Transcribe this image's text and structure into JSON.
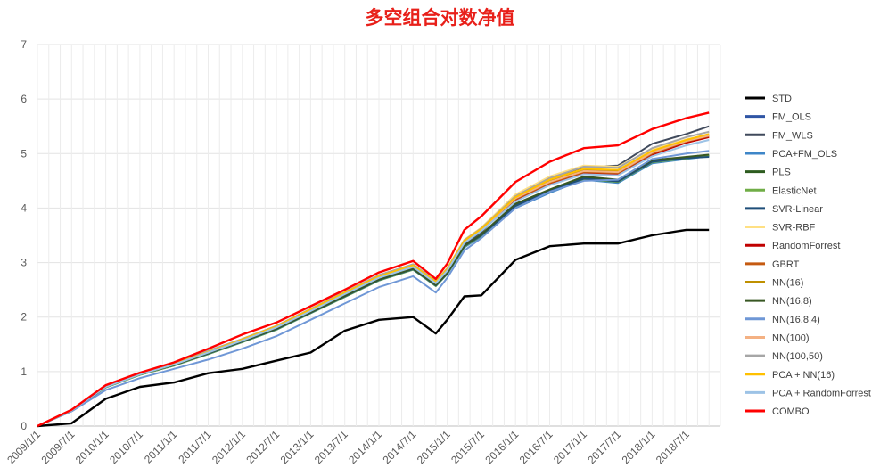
{
  "chart_data": {
    "type": "line",
    "title": "多空组合对数净值",
    "xlabel": "",
    "ylabel": "",
    "ylim": [
      0,
      7
    ],
    "yticks": [
      0,
      1,
      2,
      3,
      4,
      5,
      6,
      7
    ],
    "xtick_labels": [
      "2009/1/1",
      "2009/7/1",
      "2010/1/1",
      "2010/7/1",
      "2011/1/1",
      "2011/7/1",
      "2012/1/1",
      "2012/7/1",
      "2013/1/1",
      "2013/7/1",
      "2014/1/1",
      "2014/7/1",
      "2015/1/1",
      "2015/7/1",
      "2016/1/1",
      "2016/7/1",
      "2017/1/1",
      "2017/7/1",
      "2018/1/1",
      "2018/7/1"
    ],
    "x": [
      0,
      6,
      12,
      18,
      24,
      30,
      36,
      42,
      48,
      54,
      60,
      66,
      70,
      72,
      75,
      78,
      84,
      90,
      96,
      102,
      108,
      114,
      118
    ],
    "grid": true,
    "legend_position": "right",
    "series": [
      {
        "name": "STD",
        "color": "#000000",
        "values": [
          0,
          0.05,
          0.5,
          0.72,
          0.8,
          0.97,
          1.05,
          1.2,
          1.35,
          1.75,
          1.95,
          2.0,
          1.7,
          1.95,
          2.38,
          2.4,
          3.05,
          3.3,
          3.35,
          3.35,
          3.5,
          3.6,
          3.6
        ]
      },
      {
        "name": "FM_OLS",
        "color": "#2f55a4",
        "values": [
          0,
          0.28,
          0.72,
          0.95,
          1.12,
          1.33,
          1.55,
          1.78,
          2.08,
          2.38,
          2.68,
          2.88,
          2.58,
          2.8,
          3.3,
          3.5,
          4.05,
          4.32,
          4.55,
          4.5,
          4.85,
          4.92,
          4.95
        ]
      },
      {
        "name": "FM_WLS",
        "color": "#404a5c",
        "values": [
          0,
          0.28,
          0.72,
          0.95,
          1.12,
          1.34,
          1.56,
          1.79,
          2.1,
          2.4,
          2.7,
          2.9,
          2.6,
          2.82,
          3.34,
          3.56,
          4.2,
          4.55,
          4.75,
          4.78,
          5.18,
          5.36,
          5.5
        ]
      },
      {
        "name": "PCA+FM_OLS",
        "color": "#3e86c8",
        "values": [
          0,
          0.28,
          0.71,
          0.94,
          1.11,
          1.32,
          1.54,
          1.77,
          2.07,
          2.37,
          2.67,
          2.87,
          2.57,
          2.79,
          3.28,
          3.48,
          4.0,
          4.28,
          4.52,
          4.46,
          4.82,
          4.9,
          4.95
        ]
      },
      {
        "name": "PLS",
        "color": "#2d5c1f",
        "values": [
          0,
          0.28,
          0.72,
          0.95,
          1.12,
          1.33,
          1.55,
          1.78,
          2.08,
          2.38,
          2.68,
          2.88,
          2.58,
          2.8,
          3.3,
          3.5,
          4.05,
          4.32,
          4.55,
          4.5,
          4.86,
          4.93,
          4.97
        ]
      },
      {
        "name": "ElasticNet",
        "color": "#70ad47",
        "values": [
          0,
          0.28,
          0.71,
          0.94,
          1.11,
          1.32,
          1.54,
          1.77,
          2.07,
          2.37,
          2.67,
          2.87,
          2.57,
          2.79,
          3.29,
          3.49,
          4.03,
          4.3,
          4.53,
          4.48,
          4.84,
          4.91,
          4.96
        ]
      },
      {
        "name": "SVR-Linear",
        "color": "#1f4e79",
        "values": [
          0,
          0.28,
          0.72,
          0.95,
          1.12,
          1.33,
          1.55,
          1.78,
          2.08,
          2.38,
          2.68,
          2.88,
          2.58,
          2.8,
          3.3,
          3.5,
          4.04,
          4.31,
          4.54,
          4.49,
          4.85,
          4.92,
          4.94
        ]
      },
      {
        "name": "SVR-RBF",
        "color": "#ffe083",
        "values": [
          0,
          0.29,
          0.73,
          0.96,
          1.14,
          1.36,
          1.6,
          1.84,
          2.15,
          2.46,
          2.77,
          2.97,
          2.66,
          2.9,
          3.42,
          3.64,
          4.25,
          4.58,
          4.78,
          4.76,
          5.08,
          5.26,
          5.35
        ]
      },
      {
        "name": "RandomForrest",
        "color": "#c00000",
        "values": [
          0,
          0.29,
          0.73,
          0.96,
          1.14,
          1.36,
          1.58,
          1.82,
          2.12,
          2.43,
          2.73,
          2.93,
          2.63,
          2.86,
          3.38,
          3.6,
          4.15,
          4.45,
          4.65,
          4.62,
          4.98,
          5.2,
          5.3
        ]
      },
      {
        "name": "GBRT",
        "color": "#c55a11",
        "values": [
          0,
          0.29,
          0.73,
          0.96,
          1.14,
          1.36,
          1.58,
          1.82,
          2.12,
          2.43,
          2.73,
          2.93,
          2.63,
          2.86,
          3.38,
          3.6,
          4.16,
          4.46,
          4.66,
          4.64,
          5.0,
          5.22,
          5.32
        ]
      },
      {
        "name": "NN(16)",
        "color": "#bf9000",
        "values": [
          0,
          0.29,
          0.73,
          0.96,
          1.14,
          1.36,
          1.59,
          1.83,
          2.13,
          2.44,
          2.74,
          2.94,
          2.64,
          2.87,
          3.39,
          3.61,
          4.2,
          4.5,
          4.7,
          4.68,
          5.04,
          5.24,
          5.34
        ]
      },
      {
        "name": "NN(16,8)",
        "color": "#385723",
        "values": [
          0,
          0.28,
          0.72,
          0.95,
          1.12,
          1.34,
          1.56,
          1.79,
          2.09,
          2.39,
          2.69,
          2.89,
          2.59,
          2.81,
          3.31,
          3.52,
          4.08,
          4.34,
          4.58,
          4.52,
          4.88,
          4.94,
          4.98
        ]
      },
      {
        "name": "NN(16,8,4)",
        "color": "#6f97d6",
        "values": [
          0,
          0.27,
          0.66,
          0.88,
          1.05,
          1.22,
          1.42,
          1.65,
          1.95,
          2.25,
          2.55,
          2.75,
          2.45,
          2.72,
          3.22,
          3.45,
          4.0,
          4.3,
          4.5,
          4.52,
          4.9,
          5.0,
          5.05
        ]
      },
      {
        "name": "NN(100)",
        "color": "#f4b183",
        "values": [
          0,
          0.29,
          0.73,
          0.96,
          1.14,
          1.36,
          1.59,
          1.83,
          2.13,
          2.44,
          2.74,
          2.94,
          2.64,
          2.87,
          3.39,
          3.61,
          4.18,
          4.48,
          4.68,
          4.66,
          5.02,
          5.23,
          5.33
        ]
      },
      {
        "name": "NN(100,50)",
        "color": "#a6a6a6",
        "values": [
          0,
          0.29,
          0.74,
          0.97,
          1.15,
          1.38,
          1.6,
          1.84,
          2.15,
          2.46,
          2.77,
          2.97,
          2.66,
          2.89,
          3.41,
          3.63,
          4.22,
          4.55,
          4.76,
          4.74,
          5.1,
          5.3,
          5.4
        ]
      },
      {
        "name": "PCA + NN(16)",
        "color": "#ffc000",
        "values": [
          0,
          0.29,
          0.73,
          0.96,
          1.14,
          1.36,
          1.59,
          1.83,
          2.14,
          2.45,
          2.75,
          2.95,
          2.65,
          2.88,
          3.4,
          3.62,
          4.2,
          4.52,
          4.72,
          4.7,
          5.05,
          5.25,
          5.36
        ]
      },
      {
        "name": "PCA + RandomForrest",
        "color": "#9dc3e6",
        "values": [
          0,
          0.29,
          0.72,
          0.95,
          1.13,
          1.35,
          1.57,
          1.81,
          2.11,
          2.42,
          2.72,
          2.92,
          2.62,
          2.85,
          3.36,
          3.58,
          4.12,
          4.42,
          4.62,
          4.6,
          4.95,
          5.15,
          5.25
        ]
      },
      {
        "name": "COMBO",
        "color": "#ff0000",
        "values": [
          0,
          0.3,
          0.75,
          0.98,
          1.17,
          1.42,
          1.68,
          1.9,
          2.2,
          2.5,
          2.82,
          3.03,
          2.7,
          2.98,
          3.6,
          3.85,
          4.48,
          4.85,
          5.1,
          5.15,
          5.45,
          5.65,
          5.75
        ]
      }
    ]
  }
}
